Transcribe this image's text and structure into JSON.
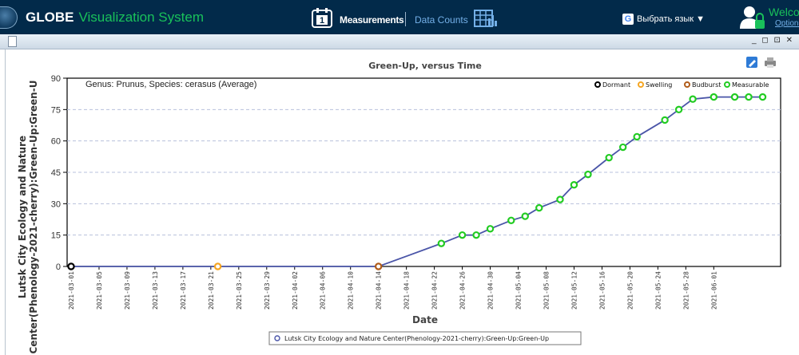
{
  "header": {
    "brand": "GLOBE",
    "brand_sub": "Visualization System",
    "nav_measurements": "Measurements",
    "nav_datacounts": "Data Counts",
    "language": "Выбрать язык  ▼",
    "welcome": "Welco",
    "options": "Options"
  },
  "window": {
    "controls": "_ ◻ ⊡ ✕"
  },
  "colors": {
    "dormant": "#000000",
    "swelling": "#f5a623",
    "budburst": "#b05c1a",
    "measurable": "#22cc22",
    "line": "#4a55a8"
  },
  "chart_data": {
    "type": "line",
    "title": "Green-Up, versus Time",
    "subtitle": "Genus: Prunus, Species: cerasus (Average)",
    "xlabel": "Date",
    "ylabel_line1": "Lutsk City Ecology and Nature",
    "ylabel_line2": "Center(Phenology-2021-cherry):Green-Up:Green-U",
    "ylim": [
      0,
      90
    ],
    "yticks": [
      0,
      15,
      30,
      45,
      60,
      75,
      90
    ],
    "xlim": [
      "2021-03-01",
      "2021-06-10"
    ],
    "xticks": [
      "2021-03-01",
      "2021-03-05",
      "2021-03-09",
      "2021-03-13",
      "2021-03-17",
      "2021-03-21",
      "2021-03-25",
      "2021-03-29",
      "2021-04-02",
      "2021-04-06",
      "2021-04-10",
      "2021-04-14",
      "2021-04-18",
      "2021-04-22",
      "2021-04-26",
      "2021-04-30",
      "2021-05-04",
      "2021-05-08",
      "2021-05-12",
      "2021-05-16",
      "2021-05-20",
      "2021-05-24",
      "2021-05-28",
      "2021-06-01"
    ],
    "grid": true,
    "legend_position": "top-right",
    "legend": [
      {
        "name": "Dormant",
        "color": "#000000"
      },
      {
        "name": "Swelling",
        "color": "#f5a623"
      },
      {
        "name": "Budburst",
        "color": "#b05c1a"
      },
      {
        "name": "Measurable",
        "color": "#22cc22"
      }
    ],
    "bottom_legend": "Lutsk City Ecology and Nature Center(Phenology-2021-cherry):Green-Up:Green-Up",
    "series": [
      {
        "points": [
          {
            "x": "2021-03-01",
            "y": 0,
            "stage": "dormant"
          },
          {
            "x": "2021-03-22",
            "y": 0,
            "stage": "swelling"
          },
          {
            "x": "2021-04-14",
            "y": 0,
            "stage": "budburst"
          },
          {
            "x": "2021-04-23",
            "y": 11,
            "stage": "measurable"
          },
          {
            "x": "2021-04-26",
            "y": 15,
            "stage": "measurable"
          },
          {
            "x": "2021-04-28",
            "y": 15,
            "stage": "measurable"
          },
          {
            "x": "2021-04-30",
            "y": 18,
            "stage": "measurable"
          },
          {
            "x": "2021-05-03",
            "y": 22,
            "stage": "measurable"
          },
          {
            "x": "2021-05-05",
            "y": 24,
            "stage": "measurable"
          },
          {
            "x": "2021-05-07",
            "y": 28,
            "stage": "measurable"
          },
          {
            "x": "2021-05-10",
            "y": 32,
            "stage": "measurable"
          },
          {
            "x": "2021-05-12",
            "y": 39,
            "stage": "measurable"
          },
          {
            "x": "2021-05-14",
            "y": 44,
            "stage": "measurable"
          },
          {
            "x": "2021-05-17",
            "y": 52,
            "stage": "measurable"
          },
          {
            "x": "2021-05-19",
            "y": 57,
            "stage": "measurable"
          },
          {
            "x": "2021-05-21",
            "y": 62,
            "stage": "measurable"
          },
          {
            "x": "2021-05-25",
            "y": 70,
            "stage": "measurable"
          },
          {
            "x": "2021-05-27",
            "y": 75,
            "stage": "measurable"
          },
          {
            "x": "2021-05-29",
            "y": 80,
            "stage": "measurable"
          },
          {
            "x": "2021-06-01",
            "y": 81,
            "stage": "measurable"
          },
          {
            "x": "2021-06-04",
            "y": 81,
            "stage": "measurable"
          },
          {
            "x": "2021-06-06",
            "y": 81,
            "stage": "measurable"
          },
          {
            "x": "2021-06-08",
            "y": 81,
            "stage": "measurable"
          }
        ]
      }
    ]
  }
}
